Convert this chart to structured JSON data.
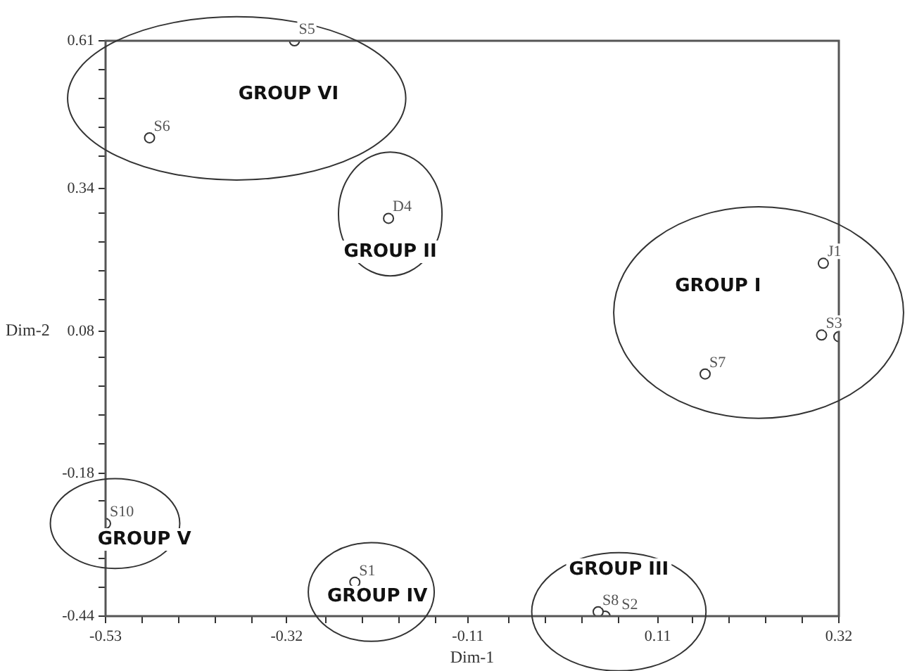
{
  "chart_data": {
    "type": "scatter",
    "xlabel": "Dim-1",
    "ylabel": "Dim-2",
    "xlim": [
      -0.53,
      0.32
    ],
    "ylim": [
      -0.44,
      0.61
    ],
    "xticks": [
      {
        "value": -0.53,
        "label": "-0.53"
      },
      {
        "value": -0.4875,
        "label": null
      },
      {
        "value": -0.445,
        "label": null
      },
      {
        "value": -0.4025,
        "label": null
      },
      {
        "value": -0.36,
        "label": null
      },
      -0.32,
      {
        "value": -0.275,
        "label": null
      },
      {
        "value": -0.2325,
        "label": null
      },
      {
        "value": -0.19,
        "label": null
      },
      {
        "value": -0.1475,
        "label": null
      },
      -0.11,
      {
        "value": -0.0625,
        "label": null
      },
      {
        "value": -0.02,
        "label": null
      },
      {
        "value": 0.0225,
        "label": null
      },
      {
        "value": 0.065,
        "label": null
      },
      0.11,
      {
        "value": 0.15,
        "label": null
      },
      {
        "value": 0.1925,
        "label": null
      },
      {
        "value": 0.235,
        "label": null
      },
      {
        "value": 0.2775,
        "label": null
      },
      {
        "value": 0.32,
        "label": "0.32"
      }
    ],
    "yticks": [
      {
        "value": -0.44,
        "label": "-0.44"
      },
      {
        "value": -0.3875,
        "label": null
      },
      {
        "value": -0.335,
        "label": null
      },
      {
        "value": -0.2825,
        "label": null
      },
      {
        "value": -0.23,
        "label": null
      },
      -0.18,
      {
        "value": -0.125,
        "label": null
      },
      {
        "value": -0.0725,
        "label": null
      },
      {
        "value": -0.02,
        "label": null
      },
      {
        "value": 0.0325,
        "label": null
      },
      0.08,
      {
        "value": 0.1375,
        "label": null
      },
      {
        "value": 0.19,
        "label": null
      },
      {
        "value": 0.2425,
        "label": null
      },
      {
        "value": 0.295,
        "label": null
      },
      0.34,
      {
        "value": 0.4,
        "label": null
      },
      {
        "value": 0.4525,
        "label": null
      },
      {
        "value": 0.505,
        "label": null
      },
      {
        "value": 0.5575,
        "label": null
      },
      {
        "value": 0.61,
        "label": "0.61"
      }
    ],
    "grid": false,
    "legend": false,
    "marker": "circle",
    "series": [
      {
        "name": "S5",
        "color": "#333333",
        "x": [
          -0.311
        ],
        "values": [
          0.61
        ]
      },
      {
        "name": "S6",
        "color": "#333333",
        "x": [
          -0.479
        ],
        "values": [
          0.433
        ]
      },
      {
        "name": "D4",
        "color": "#333333",
        "x": [
          -0.202
        ],
        "values": [
          0.286
        ]
      },
      {
        "name": "J1",
        "color": "#333333",
        "x": [
          0.302
        ],
        "values": [
          0.204
        ]
      },
      {
        "name": "S3",
        "color": "#333333",
        "x": [
          0.3
        ],
        "values": [
          0.073
        ]
      },
      {
        "color": "#333333",
        "x": [
          0.32
        ],
        "values": [
          0.07
        ]
      },
      {
        "name": "S7",
        "color": "#333333",
        "x": [
          0.165
        ],
        "values": [
          0.002
        ]
      },
      {
        "name": "S10",
        "color": "#333333",
        "x": [
          -0.53
        ],
        "values": [
          -0.271
        ]
      },
      {
        "name": "S1",
        "color": "#333333",
        "x": [
          -0.241
        ],
        "values": [
          -0.378
        ]
      },
      {
        "name": "S8",
        "color": "#333333",
        "x": [
          0.041
        ],
        "values": [
          -0.432
        ]
      },
      {
        "name": "S2",
        "color": "#333333",
        "x": [
          0.049
        ],
        "values": [
          -0.44
        ]
      }
    ],
    "annotations": [
      "GROUP VI",
      "GROUP II",
      "GROUP I",
      "GROUP V",
      "GROUP IV",
      "GROUP III"
    ]
  }
}
